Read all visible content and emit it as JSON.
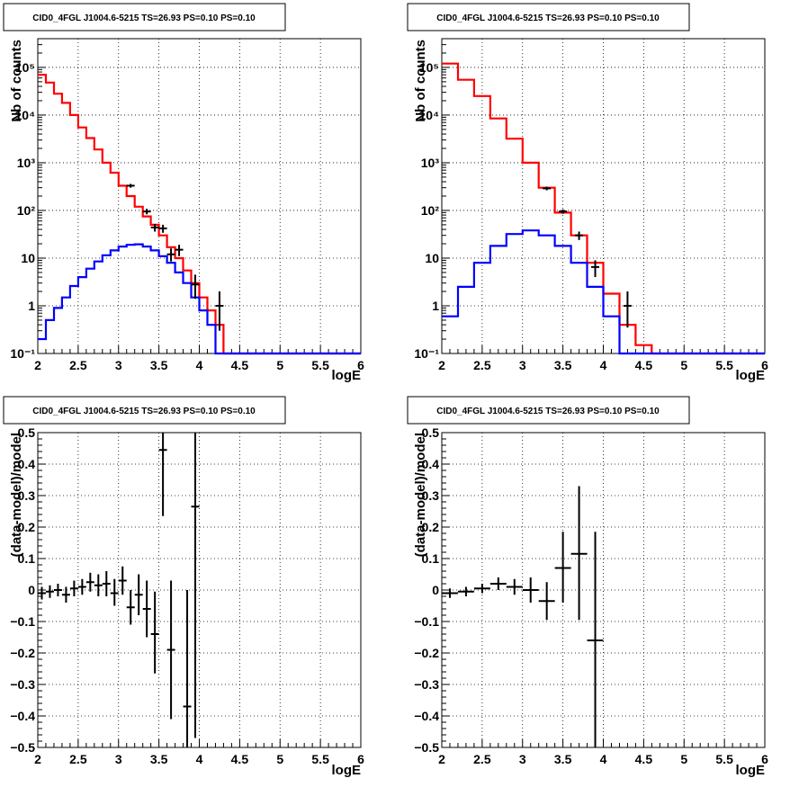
{
  "colors": {
    "data": "#000000",
    "total_model": "#ff0000",
    "source_model": "#0000ff",
    "background": "#ffffff"
  },
  "chart_data": [
    {
      "id": "counts-left",
      "type": "line",
      "title": "CID0_4FGL J1004.6-5215 TS=26.93 PS=0.10 PS=0.10",
      "xlabel": "logE",
      "ylabel": "Nb of counts",
      "xlim": [
        2,
        6
      ],
      "ylim": [
        0.1,
        400000
      ],
      "yscale": "log",
      "grid": true,
      "xticks": [
        "2",
        "2.5",
        "3",
        "3.5",
        "4",
        "4.5",
        "5",
        "5.5",
        "6"
      ],
      "yticks": [
        {
          "v": 0.1,
          "label": "10⁻¹"
        },
        {
          "v": 1,
          "label": "1"
        },
        {
          "v": 10,
          "label": "10"
        },
        {
          "v": 100,
          "label": "10²"
        },
        {
          "v": 1000,
          "label": "10³"
        },
        {
          "v": 10000,
          "label": "10⁴"
        },
        {
          "v": 100000,
          "label": "10⁵"
        }
      ],
      "bin_edges": [
        2.0,
        2.1,
        2.2,
        2.3,
        2.4,
        2.5,
        2.6,
        2.7,
        2.8,
        2.9,
        3.0,
        3.1,
        3.2,
        3.3,
        3.4,
        3.5,
        3.6,
        3.7,
        3.8,
        3.9,
        4.0,
        4.1,
        4.2,
        4.3,
        4.4,
        4.5,
        4.6,
        4.7,
        4.8,
        4.9,
        5.0,
        5.1,
        5.2,
        5.3,
        5.4,
        5.5,
        5.6,
        5.7,
        5.8,
        5.9,
        6.0
      ],
      "series": [
        {
          "role": "total_model",
          "values": [
            70000,
            48000,
            28000,
            18000,
            10000,
            5500,
            3300,
            1900,
            1000,
            620,
            330,
            200,
            120,
            75,
            50,
            30,
            17,
            10,
            5.5,
            3,
            1.5,
            0.8,
            0.4,
            0.1,
            0.1,
            0.1,
            0.1,
            0.1,
            0.1,
            0.1,
            0.1,
            0.1,
            0.1,
            0.1,
            0.1,
            0.1,
            0.1,
            0.1,
            0.1,
            0.1
          ]
        },
        {
          "role": "source_model",
          "values": [
            0.2,
            0.5,
            0.9,
            1.5,
            2.6,
            4,
            6,
            8.5,
            11.5,
            14.5,
            17.5,
            19,
            19.5,
            17.5,
            14.5,
            11,
            8,
            5,
            3,
            1.5,
            0.8,
            0.4,
            0.1,
            0.1,
            0.1,
            0.1,
            0.1,
            0.1,
            0.1,
            0.1,
            0.1,
            0.1,
            0.1,
            0.1,
            0.1,
            0.1,
            0.1,
            0.1,
            0.1,
            0.1
          ]
        }
      ],
      "points": [
        {
          "x": 3.15,
          "y": 330,
          "lo": 300,
          "hi": 360
        },
        {
          "x": 3.35,
          "y": 95,
          "lo": 83,
          "hi": 108
        },
        {
          "x": 3.45,
          "y": 44,
          "lo": 36,
          "hi": 52
        },
        {
          "x": 3.55,
          "y": 42,
          "lo": 34,
          "hi": 50
        },
        {
          "x": 3.65,
          "y": 12,
          "lo": 8.5,
          "hi": 16
        },
        {
          "x": 3.75,
          "y": 15,
          "lo": 11,
          "hi": 19
        },
        {
          "x": 3.95,
          "y": 2.8,
          "lo": 1.4,
          "hi": 4.5
        },
        {
          "x": 4.25,
          "y": 1,
          "lo": 0.3,
          "hi": 2
        }
      ]
    },
    {
      "id": "counts-right",
      "type": "line",
      "title": "CID0_4FGL J1004.6-5215 TS=26.93 PS=0.10 PS=0.10",
      "xlabel": "logE",
      "ylabel": "Nb of counts",
      "xlim": [
        2,
        6
      ],
      "ylim": [
        0.1,
        400000
      ],
      "yscale": "log",
      "grid": true,
      "xticks": [
        "2",
        "2.5",
        "3",
        "3.5",
        "4",
        "4.5",
        "5",
        "5.5",
        "6"
      ],
      "yticks": [
        {
          "v": 0.1,
          "label": "10⁻¹"
        },
        {
          "v": 1,
          "label": "1"
        },
        {
          "v": 10,
          "label": "10"
        },
        {
          "v": 100,
          "label": "10²"
        },
        {
          "v": 1000,
          "label": "10³"
        },
        {
          "v": 10000,
          "label": "10⁴"
        },
        {
          "v": 100000,
          "label": "10⁵"
        }
      ],
      "bin_edges": [
        2.0,
        2.2,
        2.4,
        2.6,
        2.8,
        3.0,
        3.2,
        3.4,
        3.6,
        3.8,
        4.0,
        4.2,
        4.4,
        4.6,
        4.8,
        5.0,
        5.2,
        5.4,
        5.6,
        5.8,
        6.0
      ],
      "series": [
        {
          "role": "total_model",
          "values": [
            120000,
            55000,
            25000,
            8500,
            3200,
            1000,
            300,
            90,
            30,
            8,
            1.8,
            0.4,
            0.15,
            0.1,
            0.1,
            0.1,
            0.1,
            0.1,
            0.1,
            0.1
          ]
        },
        {
          "role": "source_model",
          "values": [
            0.6,
            2.5,
            8,
            18,
            32,
            38,
            30,
            18,
            8,
            2.5,
            0.6,
            0.1,
            0.1,
            0.1,
            0.1,
            0.1,
            0.1,
            0.1,
            0.1,
            0.1
          ]
        }
      ],
      "points": [
        {
          "x": 3.3,
          "y": 290,
          "lo": 265,
          "hi": 315
        },
        {
          "x": 3.5,
          "y": 95,
          "lo": 85,
          "hi": 105
        },
        {
          "x": 3.7,
          "y": 30,
          "lo": 24,
          "hi": 36
        },
        {
          "x": 3.9,
          "y": 6.5,
          "lo": 4,
          "hi": 9
        },
        {
          "x": 4.3,
          "y": 1,
          "lo": 0.35,
          "hi": 2
        }
      ]
    },
    {
      "id": "residuals-left",
      "type": "scatter",
      "title": "CID0_4FGL J1004.6-5215 TS=26.93 PS=0.10 PS=0.10",
      "xlabel": "logE",
      "ylabel": "(data-model)/model",
      "xlim": [
        2,
        6
      ],
      "ylim": [
        -0.5,
        0.5
      ],
      "grid": true,
      "xticks": [
        "2",
        "2.5",
        "3",
        "3.5",
        "4",
        "4.5",
        "5",
        "5.5",
        "6"
      ],
      "yticks": [
        {
          "v": -0.5,
          "label": "−0.5"
        },
        {
          "v": -0.4,
          "label": "−0.4"
        },
        {
          "v": -0.3,
          "label": "−0.3"
        },
        {
          "v": -0.2,
          "label": "−0.2"
        },
        {
          "v": -0.1,
          "label": "−0.1"
        },
        {
          "v": 0,
          "label": "0"
        },
        {
          "v": 0.1,
          "label": "0.1"
        },
        {
          "v": 0.2,
          "label": "0.2"
        },
        {
          "v": 0.3,
          "label": "0.3"
        },
        {
          "v": 0.4,
          "label": "0.4"
        },
        {
          "v": 0.5,
          "label": "0.5"
        }
      ],
      "bin_width": 0.1,
      "points": [
        {
          "x": 2.05,
          "y": -0.01,
          "lo": -0.03,
          "hi": 0.01
        },
        {
          "x": 2.15,
          "y": -0.005,
          "lo": -0.025,
          "hi": 0.015
        },
        {
          "x": 2.25,
          "y": 0.0,
          "lo": -0.02,
          "hi": 0.02
        },
        {
          "x": 2.35,
          "y": -0.015,
          "lo": -0.04,
          "hi": 0.01
        },
        {
          "x": 2.45,
          "y": 0.005,
          "lo": -0.02,
          "hi": 0.03
        },
        {
          "x": 2.55,
          "y": 0.01,
          "lo": -0.015,
          "hi": 0.035
        },
        {
          "x": 2.65,
          "y": 0.025,
          "lo": -0.005,
          "hi": 0.055
        },
        {
          "x": 2.75,
          "y": 0.015,
          "lo": -0.02,
          "hi": 0.05
        },
        {
          "x": 2.85,
          "y": 0.02,
          "lo": -0.02,
          "hi": 0.06
        },
        {
          "x": 2.95,
          "y": -0.01,
          "lo": -0.05,
          "hi": 0.035
        },
        {
          "x": 3.05,
          "y": 0.03,
          "lo": -0.015,
          "hi": 0.075
        },
        {
          "x": 3.15,
          "y": -0.055,
          "lo": -0.11,
          "hi": 0.0
        },
        {
          "x": 3.25,
          "y": -0.015,
          "lo": -0.08,
          "hi": 0.05
        },
        {
          "x": 3.35,
          "y": -0.06,
          "lo": -0.15,
          "hi": 0.03
        },
        {
          "x": 3.45,
          "y": -0.14,
          "lo": -0.265,
          "hi": -0.005
        },
        {
          "x": 3.55,
          "y": 0.445,
          "lo": 0.235,
          "hi": 0.5
        },
        {
          "x": 3.65,
          "y": -0.19,
          "lo": -0.41,
          "hi": 0.03
        },
        {
          "x": 3.85,
          "y": -0.37,
          "lo": -0.5,
          "hi": 0.0
        },
        {
          "x": 3.95,
          "y": 0.265,
          "lo": -0.47,
          "hi": 0.5
        }
      ]
    },
    {
      "id": "residuals-right",
      "type": "scatter",
      "title": "CID0_4FGL J1004.6-5215 TS=26.93 PS=0.10 PS=0.10",
      "xlabel": "logE",
      "ylabel": "(data-model)/model",
      "xlim": [
        2,
        6
      ],
      "ylim": [
        -0.5,
        0.5
      ],
      "grid": true,
      "xticks": [
        "2",
        "2.5",
        "3",
        "3.5",
        "4",
        "4.5",
        "5",
        "5.5",
        "6"
      ],
      "yticks": [
        {
          "v": -0.5,
          "label": "−0.5"
        },
        {
          "v": -0.4,
          "label": "−0.4"
        },
        {
          "v": -0.3,
          "label": "−0.3"
        },
        {
          "v": -0.2,
          "label": "−0.2"
        },
        {
          "v": -0.1,
          "label": "−0.1"
        },
        {
          "v": 0,
          "label": "0"
        },
        {
          "v": 0.1,
          "label": "0.1"
        },
        {
          "v": 0.2,
          "label": "0.2"
        },
        {
          "v": 0.3,
          "label": "0.3"
        },
        {
          "v": 0.4,
          "label": "0.4"
        },
        {
          "v": 0.5,
          "label": "0.5"
        }
      ],
      "bin_width": 0.2,
      "points": [
        {
          "x": 2.1,
          "y": -0.01,
          "lo": -0.025,
          "hi": 0.005
        },
        {
          "x": 2.3,
          "y": -0.005,
          "lo": -0.02,
          "hi": 0.01
        },
        {
          "x": 2.5,
          "y": 0.005,
          "lo": -0.01,
          "hi": 0.02
        },
        {
          "x": 2.7,
          "y": 0.02,
          "lo": 0.0,
          "hi": 0.04
        },
        {
          "x": 2.9,
          "y": 0.01,
          "lo": -0.015,
          "hi": 0.035
        },
        {
          "x": 3.1,
          "y": 0.0,
          "lo": -0.04,
          "hi": 0.04
        },
        {
          "x": 3.3,
          "y": -0.035,
          "lo": -0.095,
          "hi": 0.025
        },
        {
          "x": 3.5,
          "y": 0.07,
          "lo": -0.04,
          "hi": 0.185
        },
        {
          "x": 3.7,
          "y": 0.115,
          "lo": -0.095,
          "hi": 0.33
        },
        {
          "x": 3.9,
          "y": -0.16,
          "lo": -0.5,
          "hi": 0.185
        }
      ]
    }
  ]
}
